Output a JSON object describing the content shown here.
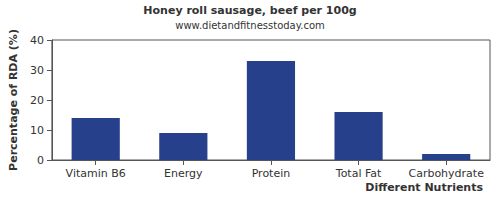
{
  "chart_data": {
    "type": "bar",
    "title": "Honey roll sausage, beef per 100g",
    "subtitle": "www.dietandfitnesstoday.com",
    "x_label": "Different Nutrients",
    "y_label": "Percentage of RDA (%)",
    "categories": [
      "Vitamin B6",
      "Energy",
      "Protein",
      "Total Fat",
      "Carbohydrate"
    ],
    "values": [
      14,
      9,
      33,
      16,
      2
    ],
    "color": "#27408b",
    "ylim": [
      0,
      40
    ],
    "yticks": [
      0,
      10,
      20,
      30,
      40
    ],
    "grid": false
  }
}
